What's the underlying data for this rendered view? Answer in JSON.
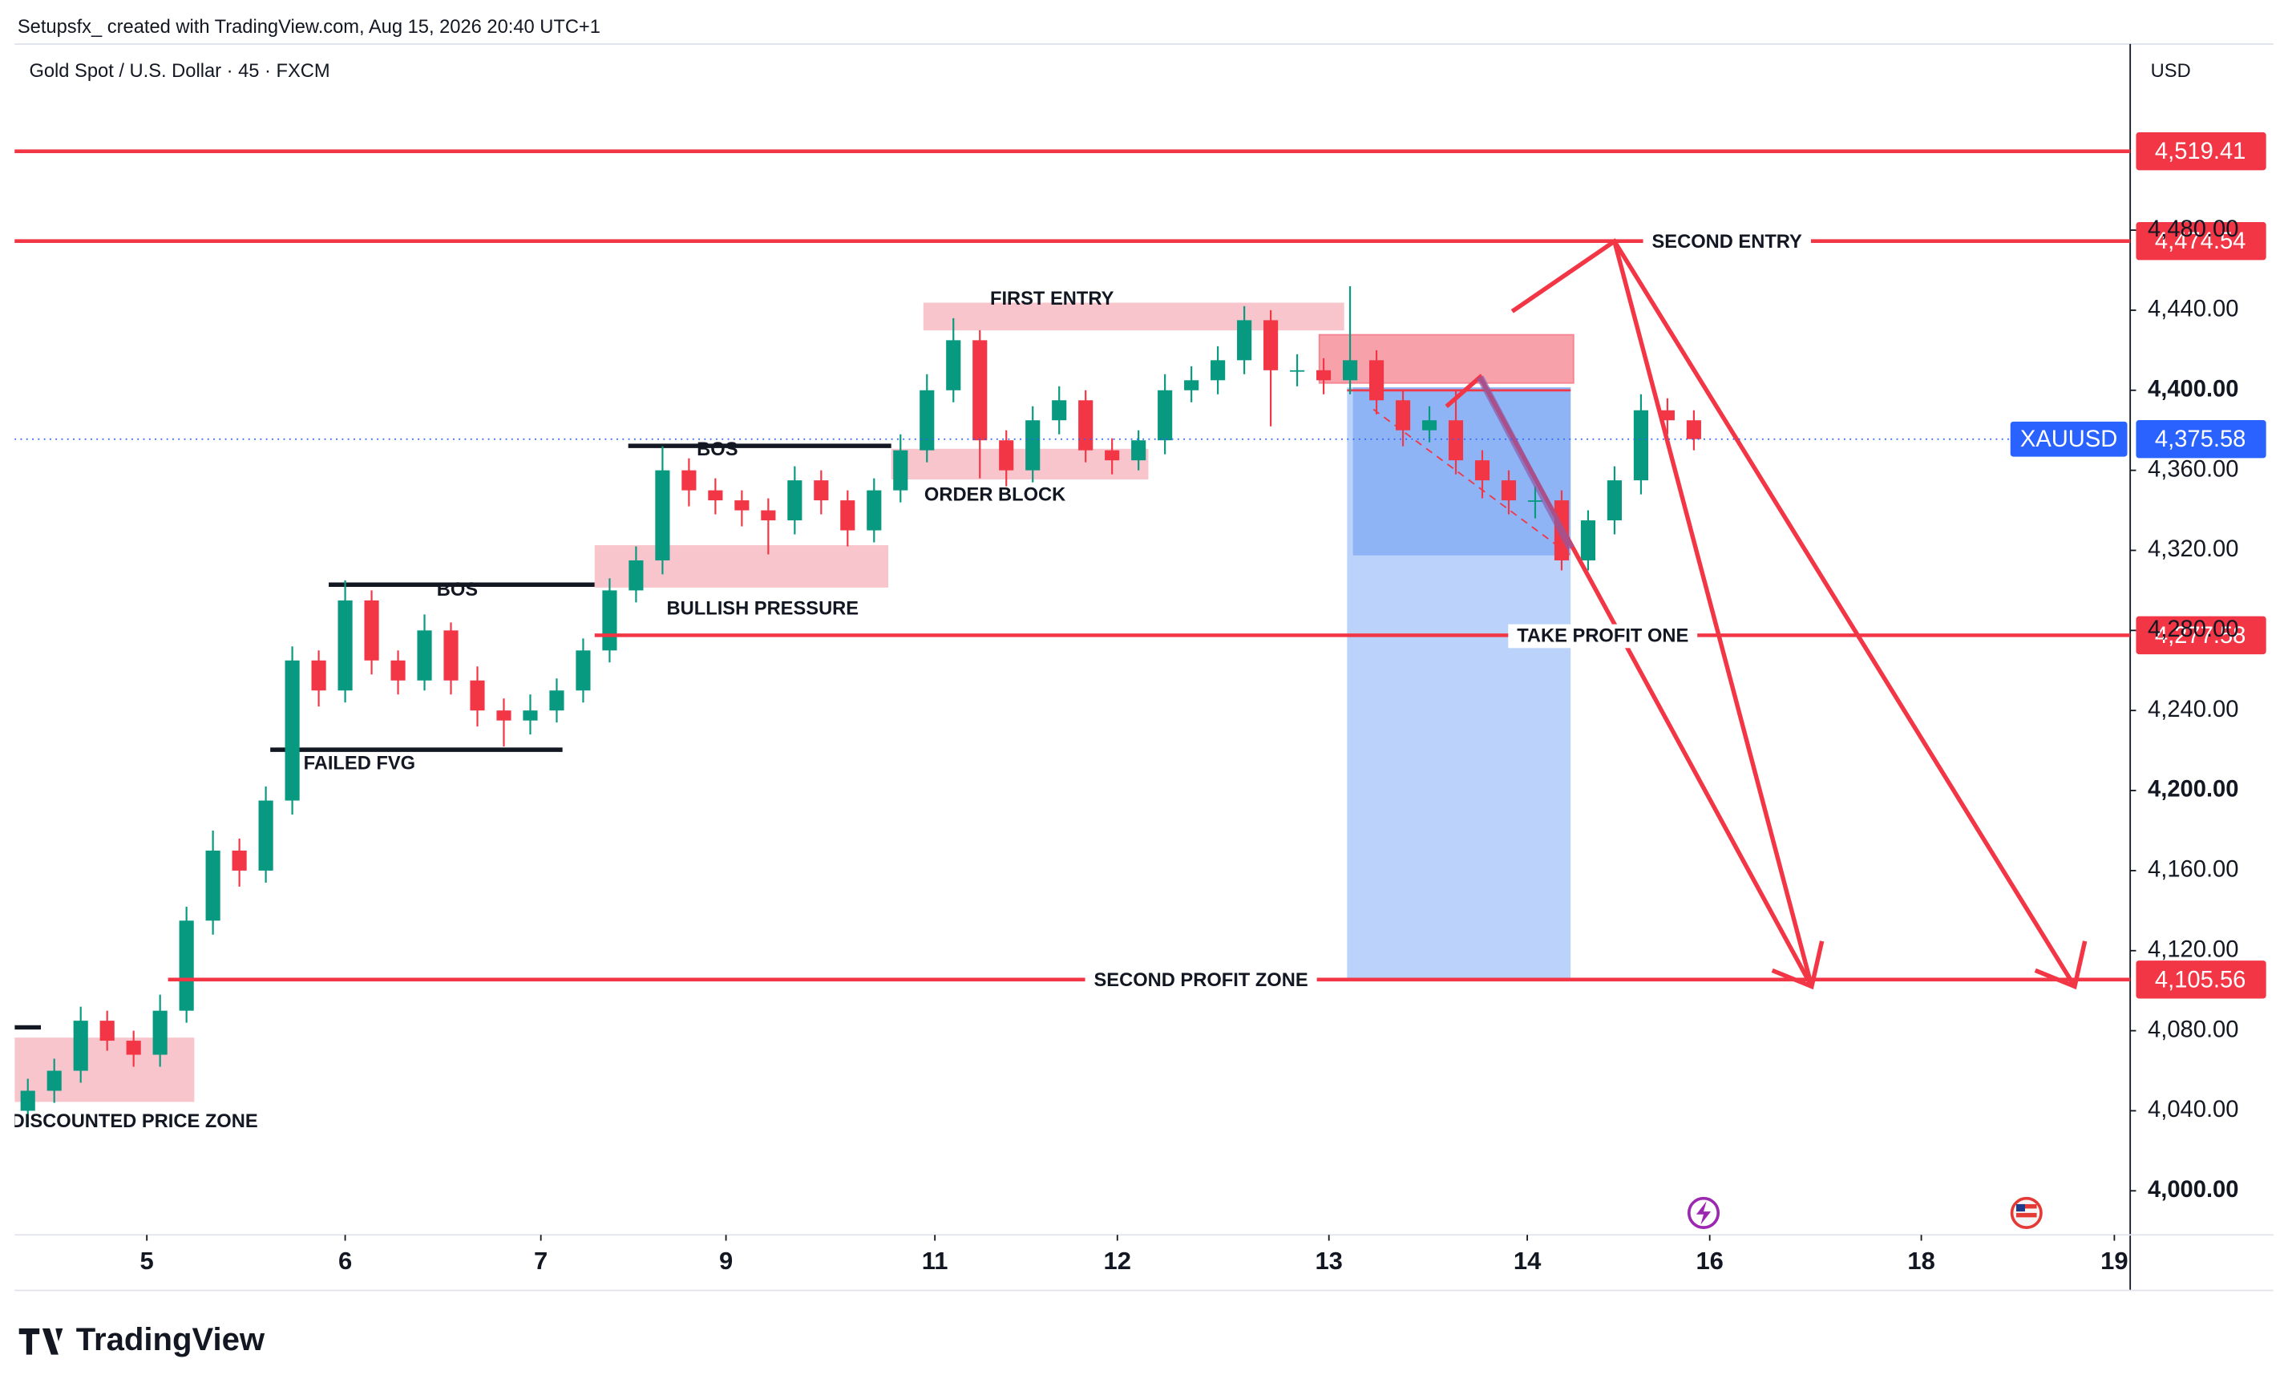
{
  "header": "Setupsfx_ created with TradingView.com, Aug 15, 2026 20:40 UTC+1",
  "brand": "TradingView",
  "chart_data": {
    "type": "candlestick",
    "title": "Gold Spot / U.S. Dollar · 45 · FXCM",
    "currency": "USD",
    "symbol": "XAUUSD",
    "last_price": {
      "value": 4375.58,
      "label": "4,375.58"
    },
    "up_color": "#089981",
    "down_color": "#f23645",
    "open": [
      4040,
      4050,
      4060,
      4085,
      4075,
      4068,
      4090,
      4135,
      4170,
      4160,
      4195,
      4265,
      4250,
      4295,
      4265,
      4255,
      4280,
      4255,
      4240,
      4235,
      4240,
      4250,
      4270,
      4300,
      4315,
      4360,
      4350,
      4345,
      4340,
      4335,
      4355,
      4345,
      4330,
      4350,
      4370,
      4400,
      4425,
      4375,
      4360,
      4385,
      4395,
      4370,
      4365,
      4375,
      4400,
      4405,
      4415,
      4435,
      4410,
      4410,
      4405,
      4415,
      4395,
      4380,
      4385,
      4365,
      4355,
      4345,
      4345,
      4315,
      4335,
      4355,
      4390,
      4385
    ],
    "high": [
      4056,
      4066,
      4092,
      4090,
      4080,
      4098,
      4142,
      4180,
      4176,
      4202,
      4272,
      4270,
      4305,
      4300,
      4270,
      4288,
      4284,
      4262,
      4246,
      4248,
      4256,
      4276,
      4306,
      4322,
      4372,
      4366,
      4356,
      4350,
      4346,
      4362,
      4360,
      4350,
      4356,
      4378,
      4408,
      4436,
      4430,
      4380,
      4392,
      4402,
      4400,
      4376,
      4380,
      4408,
      4412,
      4422,
      4442,
      4440,
      4418,
      4416,
      4452,
      4420,
      4400,
      4392,
      4400,
      4370,
      4360,
      4352,
      4350,
      4340,
      4362,
      4398,
      4396,
      4390
    ],
    "low": [
      4032,
      4044,
      4054,
      4070,
      4062,
      4062,
      4084,
      4128,
      4152,
      4154,
      4188,
      4242,
      4244,
      4258,
      4248,
      4250,
      4248,
      4232,
      4222,
      4228,
      4234,
      4244,
      4264,
      4294,
      4308,
      4342,
      4338,
      4332,
      4318,
      4328,
      4338,
      4322,
      4324,
      4344,
      4364,
      4394,
      4356,
      4352,
      4354,
      4378,
      4364,
      4358,
      4360,
      4368,
      4394,
      4398,
      4408,
      4382,
      4402,
      4398,
      4398,
      4388,
      4372,
      4374,
      4358,
      4346,
      4338,
      4336,
      4310,
      4310,
      4328,
      4348,
      4378,
      4370
    ],
    "close": [
      4050,
      4060,
      4085,
      4075,
      4068,
      4090,
      4135,
      4170,
      4160,
      4195,
      4265,
      4250,
      4295,
      4265,
      4255,
      4280,
      4255,
      4240,
      4235,
      4240,
      4250,
      4270,
      4300,
      4315,
      4360,
      4350,
      4345,
      4340,
      4335,
      4355,
      4345,
      4330,
      4350,
      4370,
      4400,
      4425,
      4375,
      4360,
      4385,
      4395,
      4370,
      4365,
      4375,
      4400,
      4405,
      4415,
      4435,
      4410,
      4410,
      4405,
      4415,
      4395,
      4380,
      4385,
      4365,
      4355,
      4345,
      4345,
      4315,
      4335,
      4355,
      4390,
      4385,
      4375.58
    ],
    "xlim": [
      0,
      80
    ],
    "xticks": [
      {
        "value": 5.0,
        "label": "5"
      },
      {
        "value": 12.5,
        "label": "6"
      },
      {
        "value": 19.9,
        "label": "7"
      },
      {
        "value": 26.9,
        "label": "9"
      },
      {
        "value": 34.8,
        "label": "11"
      },
      {
        "value": 41.7,
        "label": "12"
      },
      {
        "value": 49.7,
        "label": "13"
      },
      {
        "value": 57.2,
        "label": "14"
      },
      {
        "value": 64.1,
        "label": "16"
      },
      {
        "value": 72.1,
        "label": "18"
      },
      {
        "value": 79.4,
        "label": "19"
      }
    ],
    "ylim": [
      3978,
      4573
    ],
    "yticks": [
      {
        "value": 4000,
        "label": "4,000.00"
      },
      {
        "value": 4040,
        "label": "4,040.00"
      },
      {
        "value": 4080,
        "label": "4,080.00"
      },
      {
        "value": 4120,
        "label": "4,120.00"
      },
      {
        "value": 4160,
        "label": "4,160.00"
      },
      {
        "value": 4200,
        "label": "4,200.00"
      },
      {
        "value": 4240,
        "label": "4,240.00"
      },
      {
        "value": 4280,
        "label": "4,280.00"
      },
      {
        "value": 4320,
        "label": "4,320.00"
      },
      {
        "value": 4360,
        "label": "4,360.00"
      },
      {
        "value": 4400,
        "label": "4,400.00"
      },
      {
        "value": 4440,
        "label": "4,440.00"
      },
      {
        "value": 4480,
        "label": "4,480.00"
      }
    ],
    "price_lines": [
      {
        "value": 4519.41,
        "label": "4,519.41"
      },
      {
        "value": 4474.54,
        "label": "4,474.54",
        "text": "SECOND ENTRY"
      },
      {
        "value": 4277.58,
        "label": "4,277.58",
        "text": "TAKE PROFIT ONE"
      },
      {
        "value": 4105.56,
        "label": "4,105.56",
        "text": "SECOND PROFIT ZONE"
      }
    ],
    "annotations": [
      "FIRST ENTRY",
      "BOS",
      "BOS",
      "BULLISH PRESSURE",
      "ORDER BLOCK",
      "FAILED FVG",
      "DISCOUNTED PRICE ZONE"
    ]
  }
}
